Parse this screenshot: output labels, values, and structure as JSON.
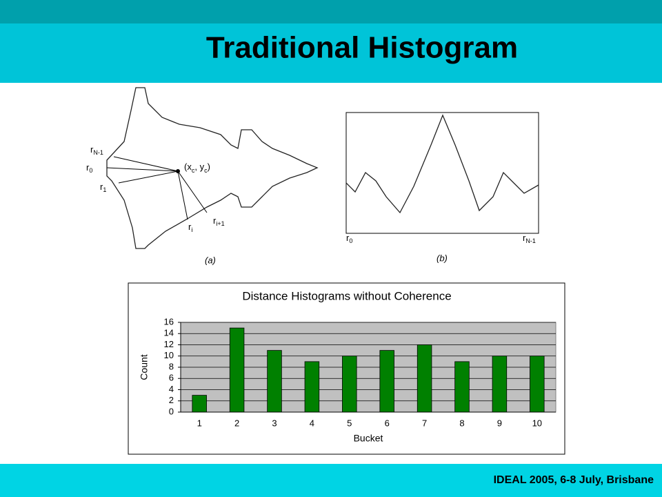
{
  "slide": {
    "title": "Traditional Histogram",
    "footer": "IDEAL 2005, 6-8 July, Brisbane"
  },
  "diagram": {
    "a": {
      "caption": "(a)",
      "rays": [
        {
          "base": "r",
          "sub": "N-1"
        },
        {
          "base": "r",
          "sub": "0"
        },
        {
          "base": "r",
          "sub": "1"
        },
        {
          "base": "r",
          "sub": "i"
        },
        {
          "base": "r",
          "sub": "i+1"
        }
      ],
      "center": [
        {
          "t": "(x"
        },
        {
          "t": "c",
          "sub": true
        },
        {
          "t": ", y"
        },
        {
          "t": "c",
          "sub": true
        },
        {
          "t": ")"
        }
      ]
    },
    "b": {
      "caption": "(b)",
      "start": {
        "base": "r",
        "sub": "0"
      },
      "end": {
        "base": "r",
        "sub": "N-1"
      }
    }
  },
  "chart_data": {
    "type": "bar",
    "title": "Distance Histograms without Coherence",
    "x_label": "Bucket",
    "y_label": "Count",
    "categories": [
      "1",
      "2",
      "3",
      "4",
      "5",
      "6",
      "7",
      "8",
      "9",
      "10"
    ],
    "values": [
      3,
      15,
      11,
      9,
      10,
      11,
      12,
      9,
      10,
      10
    ],
    "color": "#008000",
    "plot_background": "#c0c0c0",
    "ylim": [
      0,
      16
    ],
    "yticks": [
      0,
      2,
      4,
      6,
      8,
      10,
      12,
      14,
      16
    ],
    "grid": true
  }
}
